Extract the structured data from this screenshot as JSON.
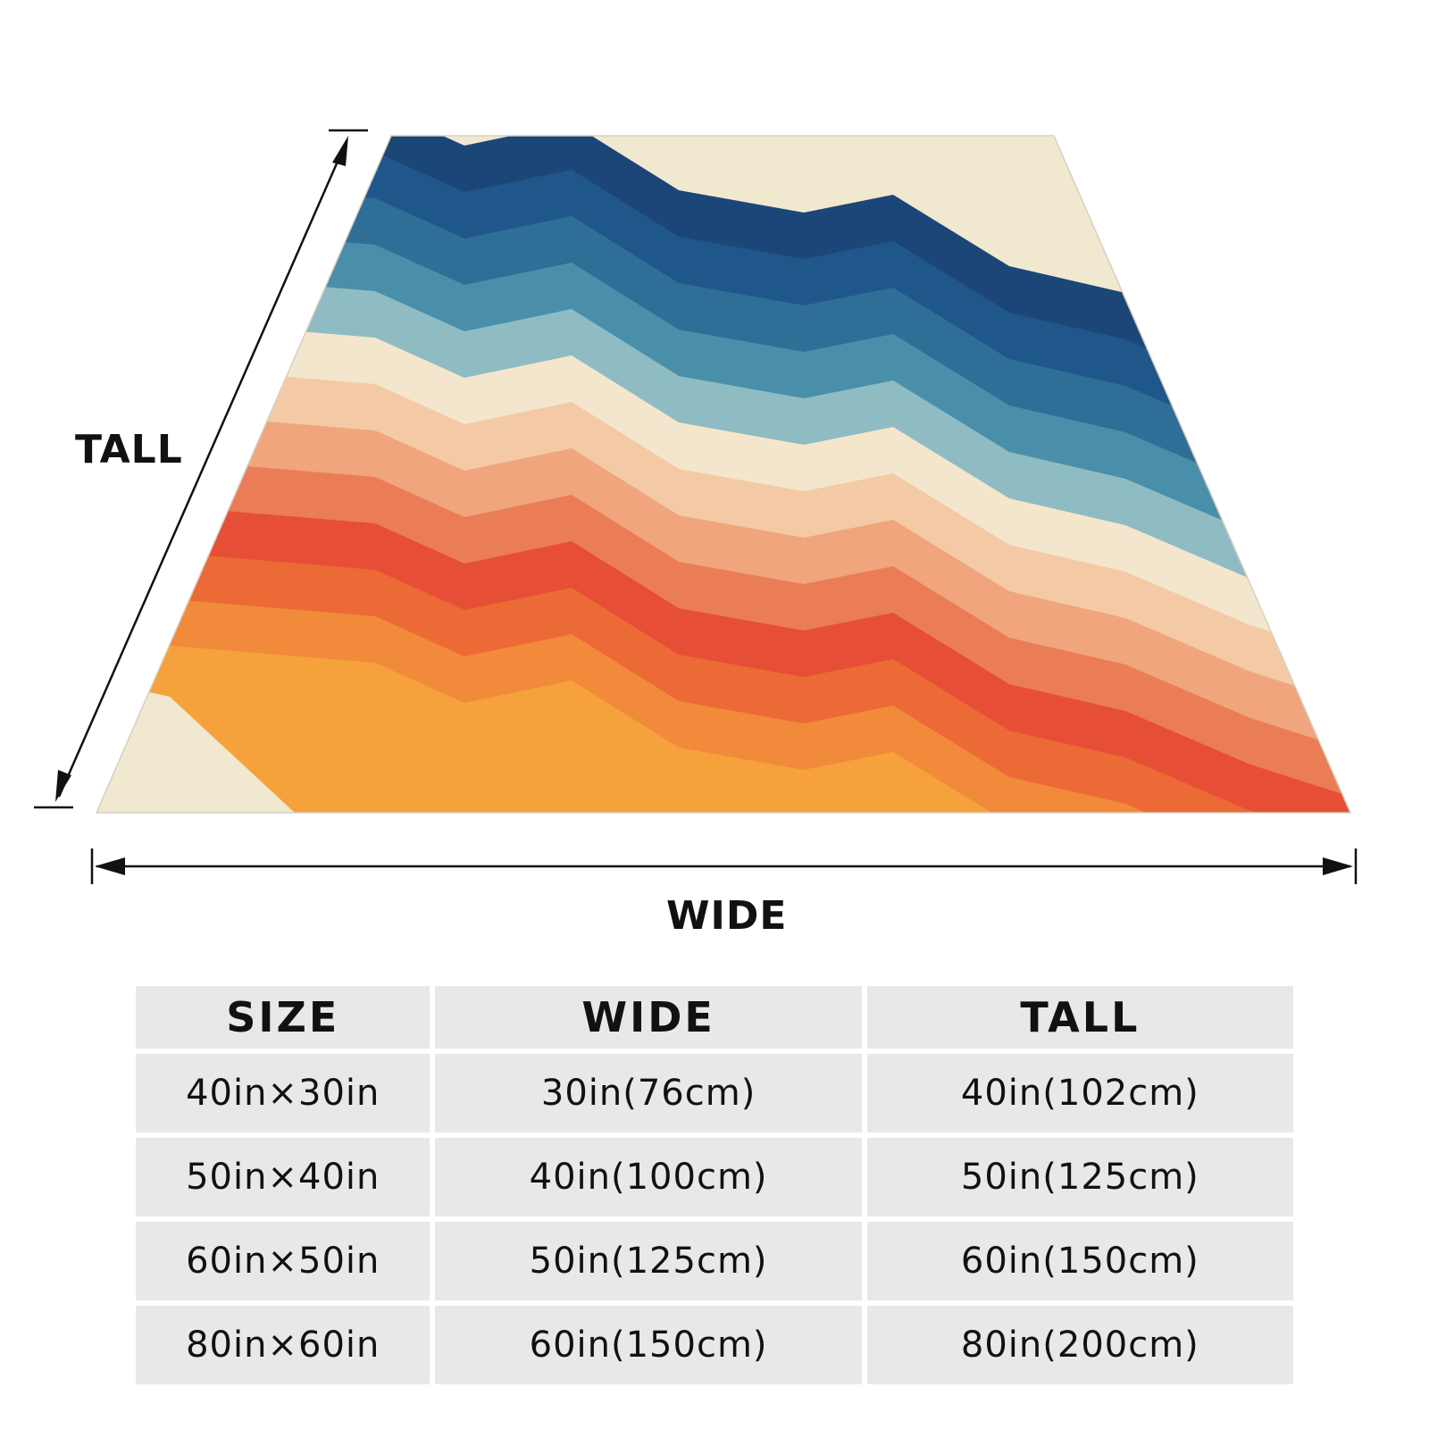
{
  "figure": {
    "tall_label": "TALL",
    "wide_label": "WIDE",
    "blanket_stripe_colors": [
      "#f1e8d0",
      "#1c4677",
      "#20578a",
      "#2f6f97",
      "#4a8fa9",
      "#8fbcc2",
      "#f3e6cc",
      "#f4c9a5",
      "#f0a57c",
      "#ea7d56",
      "#e64f35",
      "#ec6a35",
      "#f18a3a",
      "#f6a23c"
    ]
  },
  "size_table": {
    "headers": {
      "size": "SIZE",
      "wide": "WIDE",
      "tall": "TALL"
    },
    "rows": [
      {
        "size": "40in×30in",
        "wide": "30in(76cm)",
        "tall": "40in(102cm)"
      },
      {
        "size": "50in×40in",
        "wide": "40in(100cm)",
        "tall": "50in(125cm)"
      },
      {
        "size": "60in×50in",
        "wide": "50in(125cm)",
        "tall": "60in(150cm)"
      },
      {
        "size": "80in×60in",
        "wide": "60in(150cm)",
        "tall": "80in(200cm)"
      }
    ]
  }
}
